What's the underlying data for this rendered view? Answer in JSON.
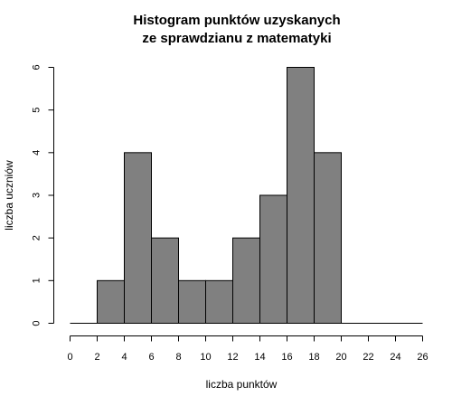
{
  "chart_data": {
    "type": "bar",
    "title_lines": [
      "Histogram punktów uzyskanych",
      "ze sprawdzianu z matematyki"
    ],
    "xlabel": "liczba punktów",
    "ylabel": "liczba uczniów",
    "x_ticks": [
      "0",
      "2",
      "4",
      "6",
      "8",
      "10",
      "12",
      "14",
      "16",
      "18",
      "20",
      "22",
      "24",
      "26"
    ],
    "y_ticks": [
      "0",
      "1",
      "2",
      "3",
      "4",
      "5",
      "6"
    ],
    "xlim": [
      0,
      26
    ],
    "ylim": [
      0,
      6
    ],
    "bins": [
      {
        "start": 2,
        "end": 4,
        "count": 1
      },
      {
        "start": 4,
        "end": 6,
        "count": 4
      },
      {
        "start": 6,
        "end": 8,
        "count": 2
      },
      {
        "start": 8,
        "end": 10,
        "count": 1
      },
      {
        "start": 10,
        "end": 12,
        "count": 1
      },
      {
        "start": 12,
        "end": 14,
        "count": 2
      },
      {
        "start": 14,
        "end": 16,
        "count": 3
      },
      {
        "start": 16,
        "end": 18,
        "count": 6
      },
      {
        "start": 18,
        "end": 20,
        "count": 4
      }
    ],
    "baseline": [
      0,
      26
    ],
    "bar_color": "#808080",
    "bar_border_color": "#000000",
    "grid": false
  }
}
